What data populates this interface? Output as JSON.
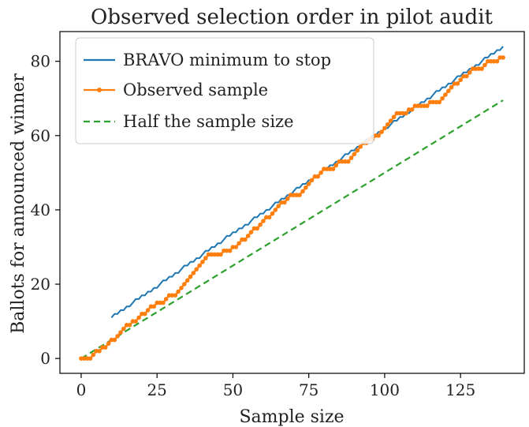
{
  "chart_data": {
    "type": "line",
    "title": "Observed selection order in pilot audit",
    "xlabel": "Sample size",
    "ylabel": "Ballots for announced winner",
    "xlim": [
      -7,
      146
    ],
    "ylim": [
      -4,
      88
    ],
    "xticks": [
      0,
      25,
      50,
      75,
      100,
      125
    ],
    "yticks": [
      0,
      20,
      40,
      60,
      80
    ],
    "grid": false,
    "legend_position": "top-left",
    "series": [
      {
        "name": "BRAVO minimum to stop",
        "color": "#1f77b4",
        "style": "solid",
        "marker": "none",
        "x_start": 10,
        "x_end": 139,
        "y_start": 11,
        "y_end": 84
      },
      {
        "name": "Observed sample",
        "color": "#ff7f0e",
        "style": "solid",
        "marker": "dot",
        "points": [
          [
            0,
            0
          ],
          [
            1,
            0
          ],
          [
            2,
            0
          ],
          [
            3,
            0
          ],
          [
            4,
            1
          ],
          [
            5,
            2
          ],
          [
            6,
            2
          ],
          [
            7,
            3
          ],
          [
            8,
            3
          ],
          [
            9,
            4
          ],
          [
            10,
            5
          ],
          [
            11,
            5
          ],
          [
            12,
            6
          ],
          [
            13,
            7
          ],
          [
            14,
            8
          ],
          [
            15,
            9
          ],
          [
            16,
            9
          ],
          [
            17,
            10
          ],
          [
            18,
            10
          ],
          [
            19,
            11
          ],
          [
            20,
            12
          ],
          [
            21,
            12
          ],
          [
            22,
            13
          ],
          [
            23,
            14
          ],
          [
            24,
            14
          ],
          [
            25,
            15
          ],
          [
            26,
            15
          ],
          [
            27,
            15
          ],
          [
            28,
            16
          ],
          [
            29,
            17
          ],
          [
            30,
            17
          ],
          [
            31,
            17
          ],
          [
            32,
            18
          ],
          [
            33,
            19
          ],
          [
            34,
            20
          ],
          [
            35,
            21
          ],
          [
            36,
            22
          ],
          [
            37,
            23
          ],
          [
            38,
            24
          ],
          [
            39,
            25
          ],
          [
            40,
            26
          ],
          [
            41,
            27
          ],
          [
            42,
            28
          ],
          [
            43,
            28
          ],
          [
            44,
            28
          ],
          [
            45,
            28
          ],
          [
            46,
            28
          ],
          [
            47,
            29
          ],
          [
            48,
            29
          ],
          [
            49,
            29
          ],
          [
            50,
            30
          ],
          [
            51,
            30
          ],
          [
            52,
            31
          ],
          [
            53,
            32
          ],
          [
            54,
            32
          ],
          [
            55,
            33
          ],
          [
            56,
            34
          ],
          [
            57,
            35
          ],
          [
            58,
            35
          ],
          [
            59,
            36
          ],
          [
            60,
            37
          ],
          [
            61,
            38
          ],
          [
            62,
            38
          ],
          [
            63,
            39
          ],
          [
            64,
            40
          ],
          [
            65,
            41
          ],
          [
            66,
            42
          ],
          [
            67,
            42
          ],
          [
            68,
            43
          ],
          [
            69,
            44
          ],
          [
            70,
            44
          ],
          [
            71,
            44
          ],
          [
            72,
            44
          ],
          [
            73,
            45
          ],
          [
            74,
            46
          ],
          [
            75,
            47
          ],
          [
            76,
            48
          ],
          [
            77,
            49
          ],
          [
            78,
            49
          ],
          [
            79,
            50
          ],
          [
            80,
            51
          ],
          [
            81,
            51
          ],
          [
            82,
            51
          ],
          [
            83,
            51
          ],
          [
            84,
            52
          ],
          [
            85,
            53
          ],
          [
            86,
            53
          ],
          [
            87,
            53
          ],
          [
            88,
            53
          ],
          [
            89,
            54
          ],
          [
            90,
            55
          ],
          [
            91,
            56
          ],
          [
            92,
            57
          ],
          [
            93,
            58
          ],
          [
            94,
            58
          ],
          [
            95,
            59
          ],
          [
            96,
            59
          ],
          [
            97,
            60
          ],
          [
            98,
            60
          ],
          [
            99,
            61
          ],
          [
            100,
            62
          ],
          [
            101,
            63
          ],
          [
            102,
            64
          ],
          [
            103,
            65
          ],
          [
            104,
            66
          ],
          [
            105,
            66
          ],
          [
            106,
            66
          ],
          [
            107,
            66
          ],
          [
            108,
            67
          ],
          [
            109,
            67
          ],
          [
            110,
            68
          ],
          [
            111,
            68
          ],
          [
            112,
            68
          ],
          [
            113,
            68
          ],
          [
            114,
            68
          ],
          [
            115,
            69
          ],
          [
            116,
            69
          ],
          [
            117,
            69
          ],
          [
            118,
            69
          ],
          [
            119,
            70
          ],
          [
            120,
            71
          ],
          [
            121,
            72
          ],
          [
            122,
            73
          ],
          [
            123,
            74
          ],
          [
            124,
            74
          ],
          [
            125,
            75
          ],
          [
            126,
            76
          ],
          [
            127,
            76
          ],
          [
            128,
            77
          ],
          [
            129,
            78
          ],
          [
            130,
            78
          ],
          [
            131,
            78
          ],
          [
            132,
            78
          ],
          [
            133,
            79
          ],
          [
            134,
            80
          ],
          [
            135,
            80
          ],
          [
            136,
            80
          ],
          [
            137,
            80
          ],
          [
            138,
            81
          ],
          [
            139,
            81
          ]
        ]
      },
      {
        "name": "Half the sample size",
        "color": "#2ca02c",
        "style": "dashed",
        "marker": "none",
        "x_start": 0,
        "x_end": 139,
        "y_start": 0,
        "y_end": 69.5
      }
    ]
  }
}
